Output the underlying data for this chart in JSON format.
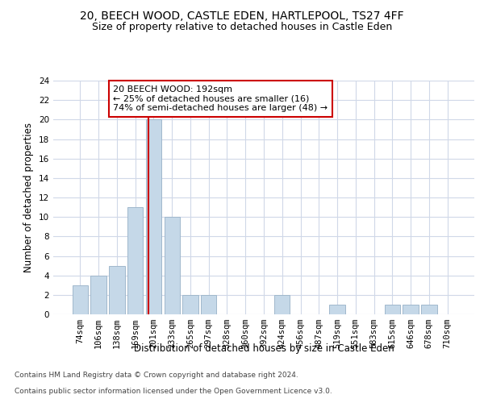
{
  "title": "20, BEECH WOOD, CASTLE EDEN, HARTLEPOOL, TS27 4FF",
  "subtitle": "Size of property relative to detached houses in Castle Eden",
  "xlabel": "Distribution of detached houses by size in Castle Eden",
  "ylabel": "Number of detached properties",
  "bin_labels": [
    "74sqm",
    "106sqm",
    "138sqm",
    "169sqm",
    "201sqm",
    "233sqm",
    "265sqm",
    "297sqm",
    "328sqm",
    "360sqm",
    "392sqm",
    "424sqm",
    "456sqm",
    "487sqm",
    "519sqm",
    "551sqm",
    "583sqm",
    "615sqm",
    "646sqm",
    "678sqm",
    "710sqm"
  ],
  "bar_heights": [
    3,
    4,
    5,
    11,
    20,
    10,
    2,
    2,
    0,
    0,
    0,
    2,
    0,
    0,
    1,
    0,
    0,
    1,
    1,
    1,
    0
  ],
  "bar_color": "#c5d8e8",
  "bar_edge_color": "#a0b8cc",
  "ylim": [
    0,
    24
  ],
  "yticks": [
    0,
    2,
    4,
    6,
    8,
    10,
    12,
    14,
    16,
    18,
    20,
    22,
    24
  ],
  "annotation_text": "20 BEECH WOOD: 192sqm\n← 25% of detached houses are smaller (16)\n74% of semi-detached houses are larger (48) →",
  "annotation_box_color": "#ffffff",
  "annotation_box_edge_color": "#cc0000",
  "red_line_color": "#cc0000",
  "footer_line1": "Contains HM Land Registry data © Crown copyright and database right 2024.",
  "footer_line2": "Contains public sector information licensed under the Open Government Licence v3.0.",
  "grid_color": "#d0d8e8",
  "background_color": "#ffffff",
  "title_fontsize": 10,
  "subtitle_fontsize": 9,
  "axis_label_fontsize": 8.5,
  "tick_fontsize": 7.5,
  "annotation_fontsize": 8,
  "footer_fontsize": 6.5
}
